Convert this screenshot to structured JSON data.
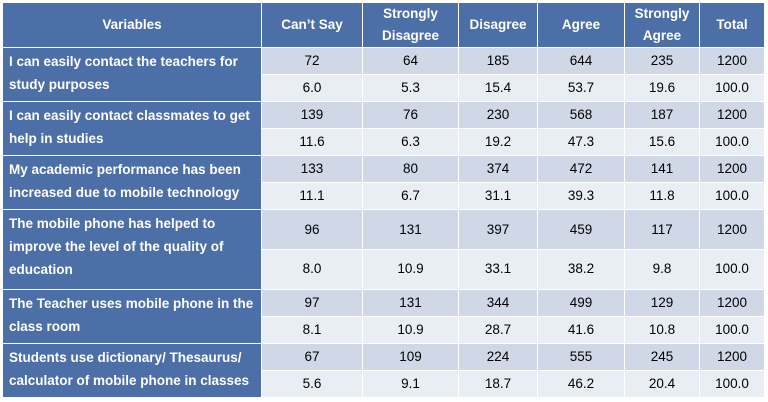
{
  "chart_data": {
    "type": "table",
    "columns": [
      "Variables",
      "Can’t Say",
      "Strongly Disagree",
      "Disagree",
      "Agree",
      "Strongly Agree",
      "Total"
    ],
    "rows": [
      {
        "variable": "I can easily contact the teachers for study purposes",
        "counts": [
          "72",
          "64",
          "185",
          "644",
          "235",
          "1200"
        ],
        "percents": [
          "6.0",
          "5.3",
          "15.4",
          "53.7",
          "19.6",
          "100.0"
        ]
      },
      {
        "variable": "I can easily contact classmates to get help in studies",
        "counts": [
          "139",
          "76",
          "230",
          "568",
          "187",
          "1200"
        ],
        "percents": [
          "11.6",
          "6.3",
          "19.2",
          "47.3",
          "15.6",
          "100.0"
        ]
      },
      {
        "variable": "My academic performance has been increased due to mobile technology",
        "counts": [
          "133",
          "80",
          "374",
          "472",
          "141",
          "1200"
        ],
        "percents": [
          "11.1",
          "6.7",
          "31.1",
          "39.3",
          "11.8",
          "100.0"
        ]
      },
      {
        "variable": "The mobile phone has helped to improve the level of the quality of education",
        "counts": [
          "96",
          "131",
          "397",
          "459",
          "117",
          "1200"
        ],
        "percents": [
          "8.0",
          "10.9",
          "33.1",
          "38.2",
          "9.8",
          "100.0"
        ]
      },
      {
        "variable": "The Teacher uses mobile phone in the class room",
        "counts": [
          "97",
          "131",
          "344",
          "499",
          "129",
          "1200"
        ],
        "percents": [
          "8.1",
          "10.9",
          "28.7",
          "41.6",
          "10.8",
          "100.0"
        ]
      },
      {
        "variable": "Students use dictionary/ Thesaurus/ calculator of mobile phone in classes",
        "counts": [
          "67",
          "109",
          "224",
          "555",
          "245",
          "1200"
        ],
        "percents": [
          "5.6",
          "9.1",
          "18.7",
          "46.2",
          "20.4",
          "100.0"
        ]
      }
    ]
  },
  "colors": {
    "header_bg": "#4c6fa8",
    "header_text": "#ffffff",
    "row_band_dark": "#d0d8e8",
    "row_band_light": "#e9edf4",
    "cell_text": "#000000"
  }
}
